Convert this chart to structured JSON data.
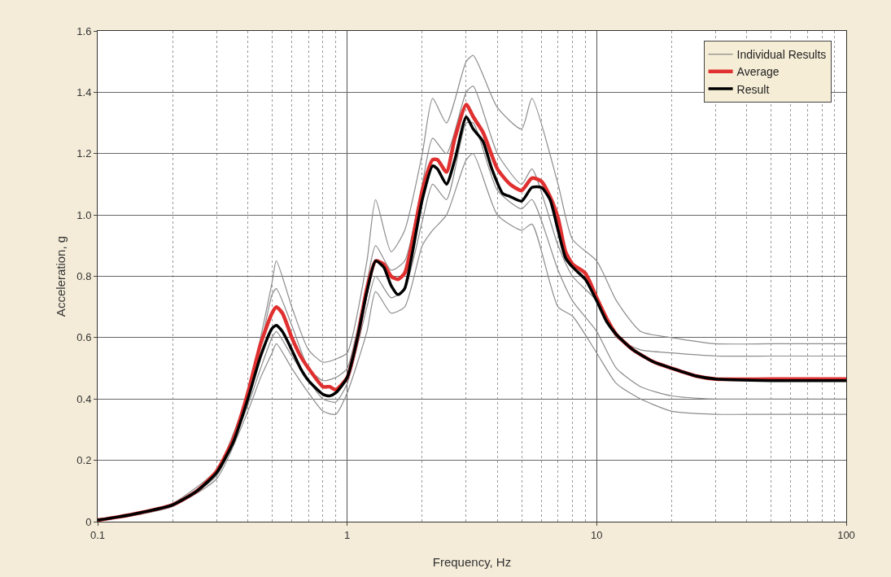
{
  "chart_data": {
    "type": "line",
    "xlabel": "Frequency, Hz",
    "ylabel": "Acceleration, g",
    "log": "x",
    "xlim": [
      0.1,
      100
    ],
    "xticks": [
      0.1,
      1,
      10,
      100
    ],
    "ylim": [
      0,
      1.6
    ],
    "yticks": [
      {
        "value": 0,
        "label": "0"
      },
      0.2,
      0.4,
      0.6,
      0.8,
      {
        "value": 1,
        "label": "1.0"
      },
      1.2,
      1.4,
      1.6
    ],
    "grid": true,
    "legend": "top right",
    "marker": "none",
    "line_style": "solid",
    "series": [
      {
        "name": "Individual Results",
        "color": "#8c8c8c",
        "x": [
          0.1,
          0.15,
          0.2,
          0.3,
          0.4,
          0.45,
          0.5,
          0.52,
          0.6,
          0.7,
          0.8,
          0.9,
          1,
          1.2,
          1.3,
          1.5,
          1.7,
          2,
          2.2,
          2.5,
          3,
          3.2,
          4,
          5,
          5.5,
          7,
          8,
          10,
          12,
          15,
          20,
          30,
          50,
          100
        ],
        "values": [
          0.005,
          0.03,
          0.06,
          0.17,
          0.42,
          0.6,
          0.78,
          0.85,
          0.7,
          0.56,
          0.52,
          0.53,
          0.55,
          0.85,
          1.05,
          0.88,
          0.95,
          1.2,
          1.38,
          1.3,
          1.5,
          1.52,
          1.35,
          1.28,
          1.38,
          1.1,
          0.92,
          0.85,
          0.72,
          0.62,
          0.6,
          0.58,
          0.58,
          0.58
        ]
      },
      {
        "color": "#8c8c8c",
        "x": [
          0.1,
          0.15,
          0.2,
          0.3,
          0.4,
          0.45,
          0.5,
          0.52,
          0.6,
          0.7,
          0.8,
          0.9,
          1,
          1.2,
          1.3,
          1.5,
          1.7,
          2,
          2.2,
          2.5,
          3,
          3.2,
          4,
          5,
          5.5,
          7,
          8,
          10,
          12,
          15,
          20,
          30,
          50,
          100
        ],
        "values": [
          0.005,
          0.03,
          0.055,
          0.16,
          0.4,
          0.57,
          0.74,
          0.76,
          0.64,
          0.5,
          0.46,
          0.47,
          0.5,
          0.78,
          0.9,
          0.82,
          0.85,
          1.1,
          1.25,
          1.2,
          1.4,
          1.42,
          1.2,
          1.1,
          1.15,
          0.9,
          0.8,
          0.72,
          0.6,
          0.56,
          0.55,
          0.54,
          0.54,
          0.54
        ]
      },
      {
        "color": "#8c8c8c",
        "x": [
          0.1,
          0.15,
          0.2,
          0.3,
          0.4,
          0.45,
          0.5,
          0.52,
          0.6,
          0.7,
          0.8,
          0.9,
          1,
          1.2,
          1.3,
          1.5,
          1.7,
          2,
          2.2,
          2.5,
          3,
          3.2,
          4,
          5,
          5.5,
          7,
          8,
          10,
          12,
          15,
          20,
          30,
          50,
          100
        ],
        "values": [
          0.005,
          0.028,
          0.05,
          0.15,
          0.38,
          0.5,
          0.6,
          0.62,
          0.54,
          0.46,
          0.4,
          0.39,
          0.45,
          0.7,
          0.8,
          0.73,
          0.76,
          0.98,
          1.1,
          1.05,
          1.3,
          1.3,
          1.08,
          1.02,
          1.05,
          0.82,
          0.72,
          0.62,
          0.5,
          0.44,
          0.41,
          0.4,
          0.4,
          0.4
        ]
      },
      {
        "color": "#8c8c8c",
        "x": [
          0.1,
          0.15,
          0.2,
          0.3,
          0.4,
          0.45,
          0.5,
          0.52,
          0.6,
          0.7,
          0.8,
          0.9,
          1,
          1.2,
          1.3,
          1.5,
          1.7,
          2,
          2.2,
          2.5,
          3,
          3.2,
          4,
          5,
          5.5,
          7,
          8,
          10,
          12,
          15,
          20,
          30,
          50,
          100
        ],
        "values": [
          0.005,
          0.025,
          0.05,
          0.14,
          0.36,
          0.47,
          0.55,
          0.58,
          0.5,
          0.42,
          0.36,
          0.35,
          0.42,
          0.62,
          0.75,
          0.68,
          0.7,
          0.9,
          0.95,
          1.0,
          1.18,
          1.2,
          1.0,
          0.95,
          0.97,
          0.7,
          0.67,
          0.55,
          0.45,
          0.4,
          0.36,
          0.35,
          0.35,
          0.35
        ]
      },
      {
        "name": "Average",
        "color": "#e03030",
        "x": [
          0.1,
          0.12,
          0.15,
          0.2,
          0.25,
          0.3,
          0.35,
          0.4,
          0.45,
          0.5,
          0.52,
          0.55,
          0.6,
          0.65,
          0.7,
          0.8,
          0.85,
          0.9,
          1,
          1.1,
          1.2,
          1.3,
          1.4,
          1.5,
          1.6,
          1.7,
          1.8,
          2,
          2.2,
          2.3,
          2.5,
          2.7,
          3,
          3.2,
          3.5,
          4,
          4.5,
          5,
          5.5,
          6,
          6.5,
          7,
          7.5,
          8,
          9,
          10,
          11,
          12,
          14,
          17,
          20,
          25,
          30,
          50,
          100
        ],
        "values": [
          0.005,
          0.015,
          0.03,
          0.055,
          0.1,
          0.165,
          0.27,
          0.42,
          0.58,
          0.68,
          0.7,
          0.68,
          0.6,
          0.54,
          0.5,
          0.44,
          0.44,
          0.43,
          0.47,
          0.6,
          0.76,
          0.85,
          0.84,
          0.8,
          0.79,
          0.81,
          0.89,
          1.08,
          1.18,
          1.18,
          1.14,
          1.25,
          1.36,
          1.32,
          1.27,
          1.15,
          1.1,
          1.08,
          1.12,
          1.11,
          1.06,
          0.99,
          0.88,
          0.84,
          0.81,
          0.73,
          0.66,
          0.61,
          0.56,
          0.52,
          0.5,
          0.475,
          0.465,
          0.465,
          0.465
        ]
      },
      {
        "name": "Result",
        "color": "#000000",
        "x": [
          0.1,
          0.12,
          0.15,
          0.2,
          0.25,
          0.3,
          0.35,
          0.4,
          0.45,
          0.5,
          0.52,
          0.55,
          0.6,
          0.65,
          0.7,
          0.8,
          0.85,
          0.9,
          1,
          1.1,
          1.2,
          1.3,
          1.4,
          1.5,
          1.6,
          1.7,
          1.8,
          2,
          2.2,
          2.3,
          2.5,
          2.7,
          3,
          3.2,
          3.5,
          3.8,
          4.2,
          4.5,
          5,
          5.5,
          6,
          6.5,
          7,
          7.5,
          8,
          9,
          10,
          11,
          12,
          14,
          17,
          20,
          25,
          30,
          50,
          100
        ],
        "values": [
          0.005,
          0.015,
          0.03,
          0.055,
          0.1,
          0.16,
          0.26,
          0.4,
          0.54,
          0.63,
          0.64,
          0.62,
          0.56,
          0.5,
          0.46,
          0.415,
          0.41,
          0.42,
          0.47,
          0.6,
          0.75,
          0.85,
          0.83,
          0.77,
          0.74,
          0.76,
          0.85,
          1.05,
          1.16,
          1.15,
          1.1,
          1.18,
          1.32,
          1.28,
          1.24,
          1.15,
          1.07,
          1.06,
          1.045,
          1.09,
          1.09,
          1.05,
          0.95,
          0.86,
          0.83,
          0.79,
          0.72,
          0.65,
          0.61,
          0.56,
          0.52,
          0.5,
          0.475,
          0.465,
          0.46,
          0.46
        ]
      }
    ]
  }
}
